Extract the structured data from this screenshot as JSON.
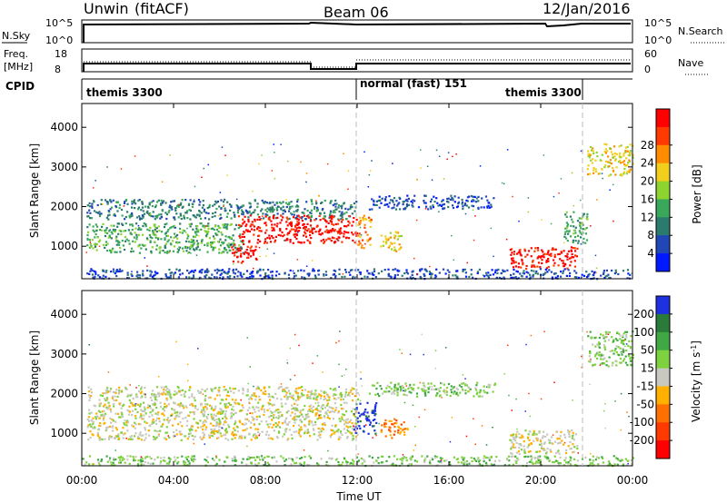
{
  "header": {
    "radar": "Unwin",
    "mode": "(fitACF)",
    "beam": "Beam 06",
    "date": "12/Jan/2016"
  },
  "top_panels": {
    "nsky_label": "N.Sky",
    "nsky_ticks": [
      "10^5",
      "10^0"
    ],
    "nsearch_label": "N.Search",
    "freq_label_1": "Freq.",
    "freq_label_2": "[MHz]",
    "freq_ticks": [
      "18",
      "8"
    ],
    "nave_ticks": [
      "60",
      "0"
    ],
    "nave_label": "Nave",
    "cpid_label": "CPID",
    "cpid_segments": [
      {
        "name": "themis 3300",
        "start_h": 0,
        "end_h": 12
      },
      {
        "name": "normal (fast) 151",
        "start_h": 12,
        "end_h": 22
      },
      {
        "name": "themis 3300",
        "start_h": 22,
        "end_h": 24
      }
    ]
  },
  "colors": {
    "power_scale": [
      "#0019ff",
      "#2147b7",
      "#2c7a6e",
      "#3aa85a",
      "#8ed42f",
      "#f2cf1c",
      "#ff8c00",
      "#ff3a00",
      "#ff0000"
    ],
    "velocity_scale": [
      "#1d31e0",
      "#2a7a3a",
      "#3fa845",
      "#7fd23f",
      "#c8c8c0",
      "#ffb000",
      "#ff7000",
      "#ff3a00",
      "#ff0000"
    ]
  },
  "chart_data": [
    {
      "type": "heatmap",
      "title": "Power",
      "xlabel": "Time UT",
      "ylabel": "Slant Range [km]",
      "xlim_h": [
        0,
        24
      ],
      "ylim": [
        180,
        4600
      ],
      "x_ticks": [
        "00:00",
        "04:00",
        "08:00",
        "12:00",
        "16:00",
        "20:00",
        "00:00"
      ],
      "y_ticks": [
        1000,
        2000,
        3000,
        4000
      ],
      "colorbar_label": "Power [dB]",
      "colorbar_ticks": [
        "4",
        "8",
        "12",
        "16",
        "20",
        "24",
        "28"
      ],
      "regions": [
        {
          "t": [
            0.2,
            7.0
          ],
          "r": [
            850,
            1600
          ],
          "level": 3
        },
        {
          "t": [
            0.2,
            12.0
          ],
          "r": [
            1700,
            2200
          ],
          "level": 2
        },
        {
          "t": [
            6.8,
            12.0
          ],
          "r": [
            1100,
            1800
          ],
          "level": 8
        },
        {
          "t": [
            6.5,
            7.6
          ],
          "r": [
            600,
            1100
          ],
          "level": 8
        },
        {
          "t": [
            12.0,
            12.6
          ],
          "r": [
            950,
            1800
          ],
          "level": 6
        },
        {
          "t": [
            13.0,
            14.0
          ],
          "r": [
            900,
            1400
          ],
          "level": 5
        },
        {
          "t": [
            12.5,
            18.0
          ],
          "r": [
            1950,
            2300
          ],
          "level": 1
        },
        {
          "t": [
            18.6,
            21.6
          ],
          "r": [
            450,
            1000
          ],
          "level": 8
        },
        {
          "t": [
            21.0,
            22.0
          ],
          "r": [
            1100,
            1900
          ],
          "level": 3
        },
        {
          "t": [
            22.0,
            24.0
          ],
          "r": [
            2800,
            3600
          ],
          "level": 5
        },
        {
          "t": [
            0.0,
            24.0
          ],
          "r": [
            200,
            450
          ],
          "level": 1
        }
      ]
    },
    {
      "type": "heatmap",
      "title": "Velocity",
      "xlabel": "Time UT",
      "ylabel": "Slant Range [km]",
      "xlim_h": [
        0,
        24
      ],
      "ylim": [
        180,
        4600
      ],
      "x_ticks": [
        "00:00",
        "04:00",
        "08:00",
        "12:00",
        "16:00",
        "20:00",
        "00:00"
      ],
      "y_ticks": [
        1000,
        2000,
        3000,
        4000
      ],
      "colorbar_label": "Velocity [m s^-1]",
      "colorbar_ticks": [
        "200",
        "100",
        "50",
        "15",
        "-15",
        "-50",
        "-100",
        "-200"
      ],
      "regions": [
        {
          "t": [
            0.2,
            12.0
          ],
          "r": [
            850,
            1800
          ],
          "level": 4
        },
        {
          "t": [
            0.2,
            12.0
          ],
          "r": [
            1850,
            2200
          ],
          "level": 4
        },
        {
          "t": [
            11.8,
            12.8
          ],
          "r": [
            1000,
            1800
          ],
          "level": 0
        },
        {
          "t": [
            13.0,
            14.2
          ],
          "r": [
            900,
            1400
          ],
          "level": 6
        },
        {
          "t": [
            12.5,
            18.0
          ],
          "r": [
            1950,
            2300
          ],
          "level": 3
        },
        {
          "t": [
            18.6,
            21.6
          ],
          "r": [
            500,
            1100
          ],
          "level": 4
        },
        {
          "t": [
            22.0,
            24.0
          ],
          "r": [
            2700,
            3600
          ],
          "level": 3
        },
        {
          "t": [
            0.0,
            24.0
          ],
          "r": [
            200,
            450
          ],
          "level": 3
        }
      ]
    }
  ]
}
